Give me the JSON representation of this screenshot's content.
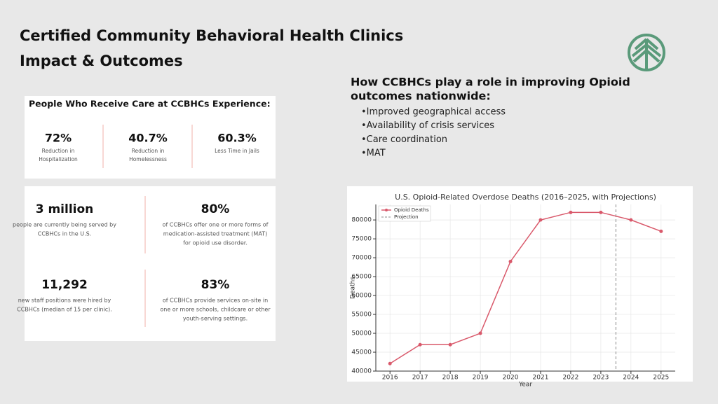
{
  "header": {
    "title": [
      "Certified Community Behavioral Health Clinics",
      "Impact & Outcomes"
    ]
  },
  "card1": {
    "heading": "People Who Receive Care at CCBHCs Experience:",
    "stats": [
      {
        "value": "72%",
        "label": [
          "Reduction in",
          "Hospitalization"
        ]
      },
      {
        "value": "40.7%",
        "label": [
          "Reduction in",
          "Homelessness"
        ]
      },
      {
        "value": "60.3%",
        "label": [
          "Less Time in Jails"
        ]
      }
    ]
  },
  "card2": {
    "stats": [
      {
        "value": "3 million",
        "label": [
          "people are currently being served by",
          "CCBHCs in the U.S."
        ]
      },
      {
        "value": "80%",
        "label": [
          "of CCBHCs offer one or more forms of",
          "medication-assisted treatment (MAT)",
          "for opioid use disorder."
        ]
      },
      {
        "value": "11,292",
        "label": [
          "new staff positions were hired by",
          "CCBHCs (median of 15 per clinic)."
        ]
      },
      {
        "value": "83%",
        "label": [
          "of CCBHCs provide services on-site in",
          "one or more schools, childcare or other",
          "youth-serving settings."
        ]
      }
    ]
  },
  "roles": {
    "heading": [
      "How CCBHCs play a role in improving Opioid",
      "outcomes nationwide:"
    ],
    "bullets": [
      "•Improved geographical access",
      "•Availability of crisis services",
      "•Care coordination",
      "•MAT"
    ]
  },
  "chart_data": {
    "type": "line",
    "title": "U.S. Opioid-Related Overdose Deaths (2016–2025, with Projections)",
    "x_label": "Year",
    "y_label": "Deaths",
    "x": [
      2016,
      2017,
      2018,
      2019,
      2020,
      2021,
      2022,
      2023,
      2024,
      2025
    ],
    "series": [
      {
        "name": "Opioid Deaths",
        "color": "#d9596b",
        "values": [
          42000,
          47000,
          47000,
          50000,
          69000,
          80000,
          82000,
          82000,
          80000,
          77000
        ]
      }
    ],
    "projection": {
      "name": "Projection",
      "x": 2023.5,
      "color": "#888888"
    },
    "xlim": [
      2015.53,
      2025.47
    ],
    "ylim": [
      40000,
      84100
    ],
    "xticks": [
      2016,
      2017,
      2018,
      2019,
      2020,
      2021,
      2022,
      2023,
      2024,
      2025
    ],
    "yticks": [
      40000,
      45000,
      50000,
      55000,
      60000,
      65000,
      70000,
      75000,
      80000
    ],
    "grid": true,
    "legend": "upper left"
  }
}
